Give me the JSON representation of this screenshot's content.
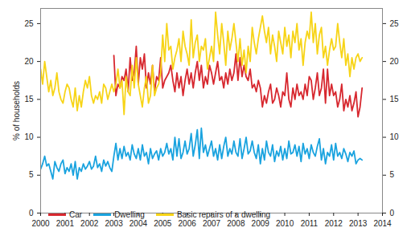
{
  "chart_data": {
    "type": "line",
    "ylabel": "% of households",
    "xlim": [
      2000,
      2014
    ],
    "xticks": [
      2000,
      2001,
      2002,
      2003,
      2004,
      2005,
      2006,
      2007,
      2008,
      2009,
      2010,
      2011,
      2012,
      2013,
      2014
    ],
    "ylim": [
      0,
      27
    ],
    "yticks": [
      0,
      5,
      10,
      15,
      20,
      25
    ],
    "grid": false,
    "legend": "bottom-left",
    "x": [
      2000,
      2000.083,
      2000.167,
      2000.25,
      2000.333,
      2000.417,
      2000.5,
      2000.583,
      2000.667,
      2000.75,
      2000.833,
      2000.917,
      2001,
      2001.083,
      2001.167,
      2001.25,
      2001.333,
      2001.417,
      2001.5,
      2001.583,
      2001.667,
      2001.75,
      2001.833,
      2001.917,
      2002,
      2002.083,
      2002.167,
      2002.25,
      2002.333,
      2002.417,
      2002.5,
      2002.583,
      2002.667,
      2002.75,
      2002.833,
      2002.917,
      2003,
      2003.083,
      2003.167,
      2003.25,
      2003.333,
      2003.417,
      2003.5,
      2003.583,
      2003.667,
      2003.75,
      2003.833,
      2003.917,
      2004,
      2004.083,
      2004.167,
      2004.25,
      2004.333,
      2004.417,
      2004.5,
      2004.583,
      2004.667,
      2004.75,
      2004.833,
      2004.917,
      2005,
      2005.083,
      2005.167,
      2005.25,
      2005.333,
      2005.417,
      2005.5,
      2005.583,
      2005.667,
      2005.75,
      2005.833,
      2005.917,
      2006,
      2006.083,
      2006.167,
      2006.25,
      2006.333,
      2006.417,
      2006.5,
      2006.583,
      2006.667,
      2006.75,
      2006.833,
      2006.917,
      2007,
      2007.083,
      2007.167,
      2007.25,
      2007.333,
      2007.417,
      2007.5,
      2007.583,
      2007.667,
      2007.75,
      2007.833,
      2007.917,
      2008,
      2008.083,
      2008.167,
      2008.25,
      2008.333,
      2008.417,
      2008.5,
      2008.583,
      2008.667,
      2008.75,
      2008.833,
      2008.917,
      2009,
      2009.083,
      2009.167,
      2009.25,
      2009.333,
      2009.417,
      2009.5,
      2009.583,
      2009.667,
      2009.75,
      2009.833,
      2009.917,
      2010,
      2010.083,
      2010.167,
      2010.25,
      2010.333,
      2010.417,
      2010.5,
      2010.583,
      2010.667,
      2010.75,
      2010.833,
      2010.917,
      2011,
      2011.083,
      2011.167,
      2011.25,
      2011.333,
      2011.417,
      2011.5,
      2011.583,
      2011.667,
      2011.75,
      2011.833,
      2011.917,
      2012,
      2012.083,
      2012.167,
      2012.25,
      2012.333,
      2012.417,
      2012.5,
      2012.583,
      2012.667,
      2012.75,
      2012.833,
      2012.917,
      2013,
      2013.083,
      2013.167
    ],
    "series": [
      {
        "name": "Car",
        "color": "#d7282f",
        "values": [
          null,
          null,
          null,
          null,
          null,
          null,
          null,
          null,
          null,
          null,
          null,
          null,
          null,
          null,
          null,
          null,
          null,
          null,
          null,
          null,
          null,
          null,
          null,
          null,
          null,
          null,
          null,
          null,
          null,
          null,
          null,
          null,
          null,
          null,
          null,
          null,
          20.8,
          15.5,
          17.0,
          16.5,
          18.0,
          17.5,
          19.0,
          16.0,
          20.5,
          17.5,
          18.5,
          22.0,
          17.0,
          20.5,
          19.0,
          21.0,
          16.5,
          18.5,
          17.0,
          19.5,
          16.0,
          18.0,
          17.5,
          20.5,
          16.5,
          17.5,
          18.0,
          18.5,
          19.5,
          17.5,
          16.0,
          18.5,
          16.5,
          18.0,
          15.5,
          17.5,
          19.0,
          17.0,
          18.5,
          16.5,
          18.5,
          20.0,
          17.5,
          19.5,
          16.5,
          18.0,
          17.0,
          19.5,
          18.5,
          17.0,
          18.5,
          20.0,
          17.5,
          18.0,
          16.5,
          18.5,
          17.0,
          19.0,
          17.5,
          18.5,
          21.0,
          17.5,
          20.5,
          18.0,
          19.5,
          18.0,
          17.5,
          19.0,
          16.5,
          17.0,
          16.0,
          17.5,
          16.5,
          14.0,
          15.5,
          14.5,
          16.0,
          17.0,
          14.5,
          15.0,
          16.5,
          15.5,
          14.0,
          16.0,
          15.5,
          18.5,
          15.0,
          14.0,
          16.5,
          15.0,
          17.0,
          15.5,
          16.0,
          15.0,
          17.0,
          15.5,
          18.0,
          17.5,
          15.0,
          16.5,
          18.5,
          15.5,
          16.5,
          19.0,
          14.5,
          19.0,
          15.5,
          17.0,
          15.5,
          16.0,
          14.0,
          15.0,
          17.0,
          13.5,
          15.0,
          14.0,
          15.5,
          13.5,
          14.5,
          16.0,
          12.7,
          14.0,
          16.5
        ]
      },
      {
        "name": "Dwelling",
        "color": "#1aa3df",
        "values": [
          5.8,
          6.5,
          7.5,
          6.2,
          6.5,
          5.5,
          4.5,
          6.8,
          6.0,
          5.5,
          6.5,
          7.0,
          5.2,
          6.0,
          5.5,
          6.5,
          5.0,
          6.8,
          4.5,
          6.0,
          5.5,
          6.5,
          5.8,
          6.2,
          6.8,
          5.8,
          6.2,
          7.5,
          6.0,
          6.5,
          5.5,
          7.0,
          6.2,
          6.8,
          6.0,
          5.5,
          7.5,
          9.2,
          7.0,
          8.5,
          7.2,
          8.8,
          7.5,
          8.0,
          7.0,
          9.0,
          7.8,
          7.2,
          8.5,
          7.0,
          9.0,
          7.5,
          8.0,
          6.5,
          8.5,
          7.2,
          7.8,
          8.2,
          7.0,
          8.5,
          7.5,
          8.0,
          9.2,
          7.8,
          8.5,
          7.0,
          10.0,
          7.5,
          9.8,
          7.2,
          8.0,
          9.5,
          7.8,
          8.5,
          10.5,
          7.5,
          9.0,
          11.0,
          7.2,
          11.2,
          8.0,
          9.0,
          7.5,
          8.5,
          9.5,
          7.5,
          8.5,
          7.0,
          9.0,
          7.2,
          8.8,
          10.0,
          7.5,
          8.5,
          7.8,
          9.5,
          8.0,
          7.5,
          9.8,
          7.2,
          8.5,
          10.0,
          7.8,
          8.2,
          9.5,
          8.0,
          7.2,
          9.0,
          6.5,
          8.5,
          7.0,
          9.5,
          8.0,
          7.5,
          9.0,
          6.8,
          8.2,
          7.5,
          8.8,
          7.0,
          8.5,
          7.2,
          9.5,
          7.8,
          8.0,
          9.0,
          7.5,
          8.8,
          6.8,
          9.2,
          7.8,
          8.5,
          7.2,
          9.0,
          8.0,
          7.5,
          8.8,
          9.8,
          7.0,
          8.5,
          6.5,
          8.0,
          7.5,
          9.0,
          7.0,
          9.2,
          7.5,
          8.0,
          7.2,
          8.5,
          7.8,
          6.8,
          8.0,
          7.5,
          8.2,
          6.5,
          7.0,
          7.2,
          7.0
        ]
      },
      {
        "name": "Basic repairs of a dwelling",
        "color": "#f7d417",
        "values": [
          19.0,
          17.0,
          20.0,
          18.0,
          16.0,
          17.5,
          15.5,
          16.5,
          18.5,
          16.0,
          15.0,
          14.5,
          16.0,
          17.0,
          16.5,
          15.0,
          14.0,
          16.5,
          13.5,
          15.5,
          14.0,
          16.0,
          17.5,
          16.5,
          18.0,
          15.5,
          14.5,
          15.5,
          15.0,
          16.0,
          14.5,
          17.0,
          16.5,
          15.0,
          16.0,
          17.0,
          16.0,
          17.0,
          19.0,
          16.5,
          17.5,
          13.0,
          18.0,
          16.0,
          15.5,
          19.5,
          16.5,
          20.5,
          17.0,
          15.5,
          14.0,
          16.5,
          18.0,
          14.5,
          15.5,
          19.5,
          15.5,
          16.5,
          17.0,
          18.5,
          23.5,
          20.0,
          25.0,
          21.5,
          22.0,
          19.0,
          20.5,
          21.5,
          23.0,
          20.0,
          24.0,
          22.0,
          21.0,
          19.5,
          25.5,
          20.5,
          22.5,
          23.5,
          20.0,
          22.0,
          21.5,
          23.0,
          19.0,
          20.5,
          22.0,
          20.0,
          26.5,
          23.5,
          21.0,
          25.0,
          22.5,
          19.5,
          24.0,
          21.5,
          23.0,
          25.0,
          22.5,
          20.0,
          23.0,
          19.5,
          21.5,
          18.5,
          22.0,
          20.0,
          24.5,
          22.5,
          21.0,
          23.0,
          24.5,
          26.0,
          24.0,
          22.5,
          24.5,
          21.0,
          23.5,
          22.0,
          20.0,
          24.0,
          22.5,
          21.0,
          24.5,
          22.0,
          23.5,
          20.5,
          24.0,
          22.5,
          25.0,
          21.5,
          23.0,
          19.5,
          22.5,
          24.0,
          23.0,
          26.5,
          22.5,
          25.0,
          21.0,
          23.5,
          24.5,
          20.5,
          22.0,
          19.5,
          21.5,
          23.0,
          21.5,
          22.0,
          25.0,
          22.5,
          20.5,
          23.0,
          19.5,
          21.0,
          18.0,
          20.5,
          19.0,
          20.5,
          21.0,
          20.0,
          20.5
        ]
      }
    ]
  }
}
